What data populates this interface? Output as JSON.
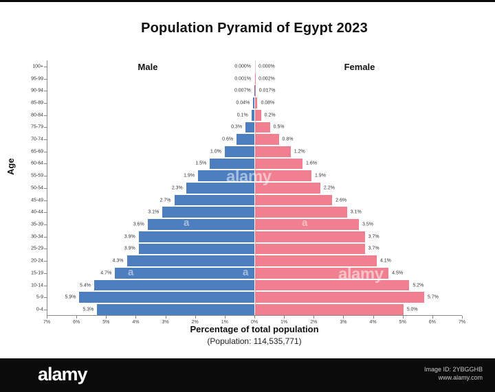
{
  "page": {
    "title": "Population Pyramid of Egypt 2023",
    "male_label": "Male",
    "female_label": "Female",
    "y_axis_title": "Age",
    "x_axis_title": "Percentage of total population",
    "population_note": "(Population: 114,535,771)"
  },
  "colors": {
    "male_bar": "#4d7ebf",
    "female_bar": "#f0808f",
    "axis": "#888888",
    "footer_bg": "#0b0b0b"
  },
  "watermark": {
    "brand": "alamy",
    "letter": "a"
  },
  "footer": {
    "brand": "alamy",
    "image_id": "Image ID: 2YBGGHB",
    "website": "www.alamy.com"
  },
  "chart_data": {
    "type": "bar",
    "subtype": "population-pyramid",
    "title": "Population Pyramid of Egypt 2023",
    "xlabel": "Percentage of total population",
    "ylabel": "Age",
    "grid": false,
    "xlim_pct": [
      -7,
      7
    ],
    "x_tick_labels": [
      "7%",
      "6%",
      "5%",
      "4%",
      "3%",
      "2%",
      "1%",
      "0%",
      "1%",
      "2%",
      "3%",
      "4%",
      "5%",
      "6%",
      "7%"
    ],
    "age_groups_top_to_bottom": [
      "100+",
      "95-99",
      "90-94",
      "85-89",
      "80-84",
      "75-79",
      "70-74",
      "65-69",
      "60-64",
      "55-59",
      "50-54",
      "45-49",
      "40-44",
      "35-39",
      "30-34",
      "25-29",
      "20-24",
      "15-19",
      "10-14",
      "5-9",
      "0-4"
    ],
    "series": [
      {
        "name": "Male",
        "side": "left",
        "color": "#4d7ebf",
        "values": [
          0.0,
          0.001,
          0.007,
          0.04,
          0.1,
          0.3,
          0.6,
          1.0,
          1.5,
          1.9,
          2.3,
          2.7,
          3.1,
          3.6,
          3.9,
          3.9,
          4.3,
          4.7,
          5.4,
          5.9,
          5.3
        ],
        "labels": [
          "0.000%",
          "0.001%",
          "0.007%",
          "0.04%",
          "0.1%",
          "0.3%",
          "0.6%",
          "1.0%",
          "1.5%",
          "1.9%",
          "2.3%",
          "2.7%",
          "3.1%",
          "3.6%",
          "3.9%",
          "3.9%",
          "4.3%",
          "4.7%",
          "5.4%",
          "5.9%",
          "5.3%"
        ]
      },
      {
        "name": "Female",
        "side": "right",
        "color": "#f0808f",
        "values": [
          0.0,
          0.002,
          0.017,
          0.08,
          0.2,
          0.5,
          0.8,
          1.2,
          1.6,
          1.9,
          2.2,
          2.6,
          3.1,
          3.5,
          3.7,
          3.7,
          4.1,
          4.5,
          5.2,
          5.7,
          5.0
        ],
        "labels": [
          "0.000%",
          "0.002%",
          "0.017%",
          "0.08%",
          "0.2%",
          "0.5%",
          "0.8%",
          "1.2%",
          "1.6%",
          "1.9%",
          "2.2%",
          "2.6%",
          "3.1%",
          "3.5%",
          "3.7%",
          "3.7%",
          "4.1%",
          "4.5%",
          "5.2%",
          "5.7%",
          "5.0%"
        ]
      }
    ]
  }
}
